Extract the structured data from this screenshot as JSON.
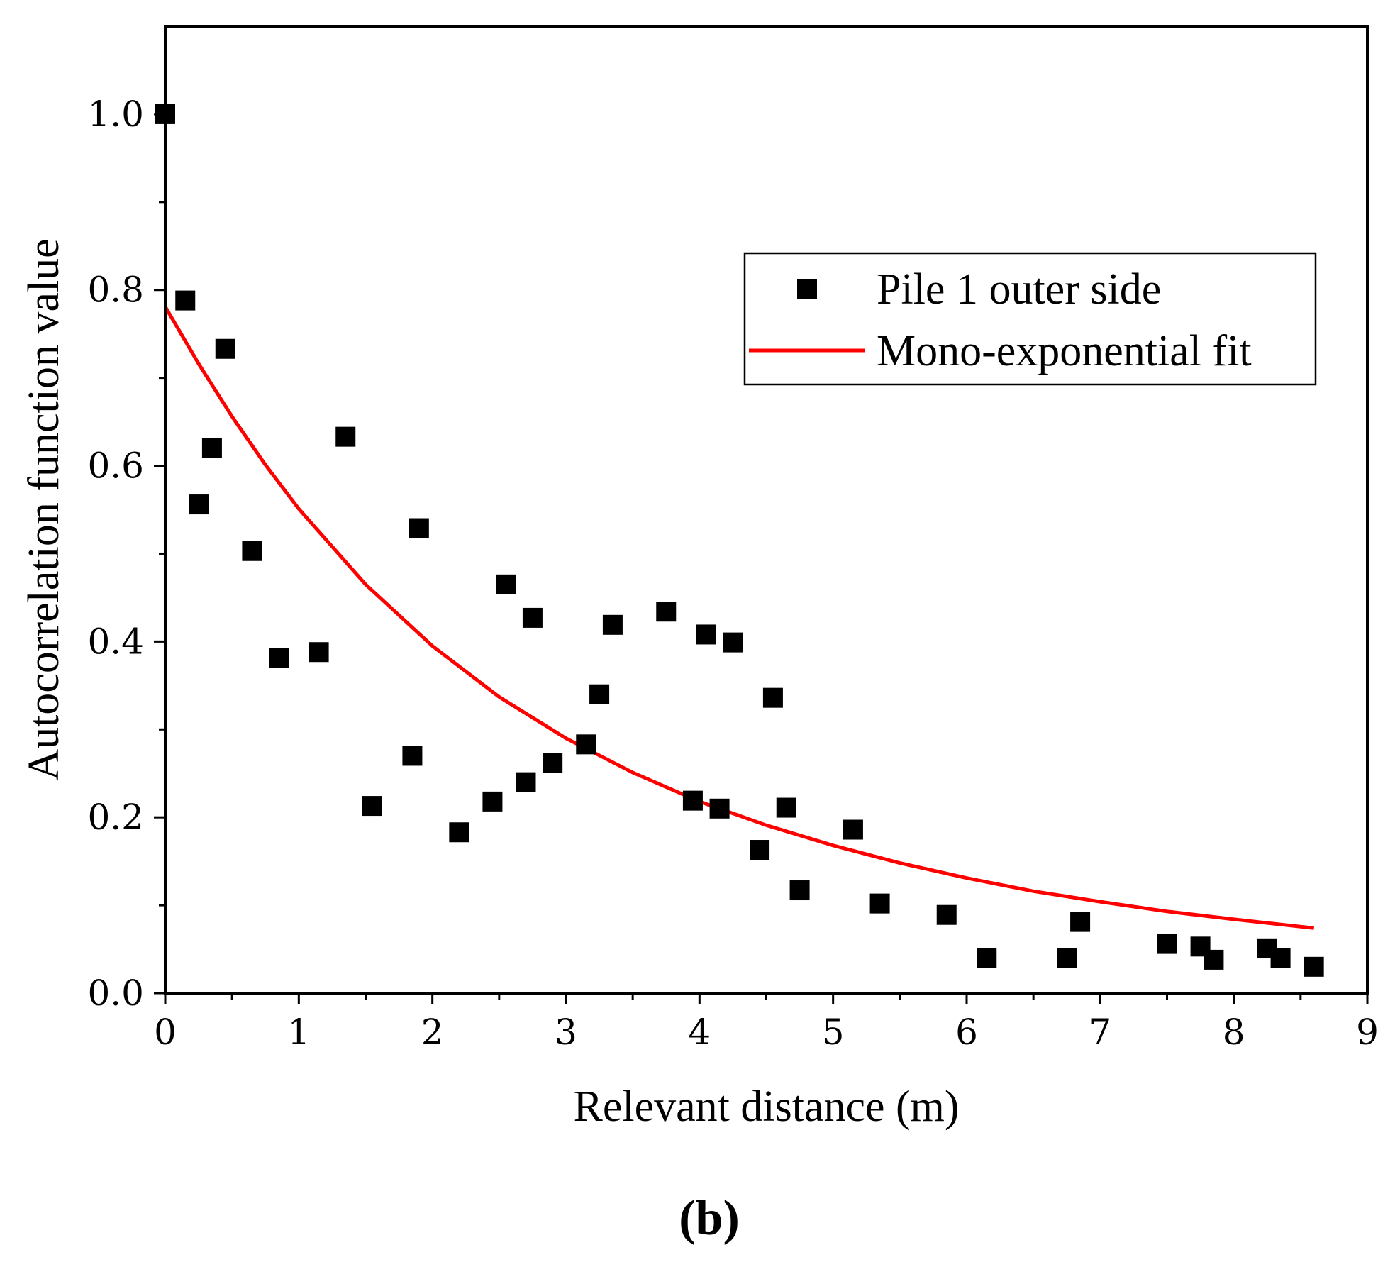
{
  "chart_data": {
    "type": "scatter",
    "title": "",
    "xlabel": "Relevant distance (m)",
    "ylabel": "Autocorrelation function value",
    "xlim": [
      0,
      9
    ],
    "ylim": [
      0,
      1.1
    ],
    "x_ticks": [
      0,
      1,
      2,
      3,
      4,
      5,
      6,
      7,
      8,
      9
    ],
    "y_ticks": [
      0.0,
      0.2,
      0.4,
      0.6,
      0.8,
      1.0
    ],
    "x_tick_labels": [
      "0",
      "1",
      "2",
      "3",
      "4",
      "5",
      "6",
      "7",
      "8",
      "9"
    ],
    "y_tick_labels": [
      "0.0",
      "0.2",
      "0.4",
      "0.6",
      "0.8",
      "1.0"
    ],
    "legend_position": "top-right",
    "panel_label": "(b)",
    "series": [
      {
        "name": "Pile 1 outer side",
        "kind": "scatter",
        "marker": "square",
        "color": "#000000",
        "points": [
          [
            0.0,
            1.0
          ],
          [
            0.15,
            0.788
          ],
          [
            0.25,
            0.556
          ],
          [
            0.35,
            0.62
          ],
          [
            0.45,
            0.733
          ],
          [
            0.65,
            0.503
          ],
          [
            0.85,
            0.381
          ],
          [
            1.15,
            0.388
          ],
          [
            1.35,
            0.633
          ],
          [
            1.55,
            0.213
          ],
          [
            1.85,
            0.27
          ],
          [
            1.9,
            0.529
          ],
          [
            2.2,
            0.183
          ],
          [
            2.45,
            0.218
          ],
          [
            2.55,
            0.465
          ],
          [
            2.7,
            0.24
          ],
          [
            2.75,
            0.427
          ],
          [
            2.9,
            0.262
          ],
          [
            3.15,
            0.283
          ],
          [
            3.25,
            0.34
          ],
          [
            3.35,
            0.419
          ],
          [
            3.75,
            0.434
          ],
          [
            3.95,
            0.219
          ],
          [
            4.05,
            0.408
          ],
          [
            4.15,
            0.21
          ],
          [
            4.25,
            0.399
          ],
          [
            4.45,
            0.163
          ],
          [
            4.55,
            0.336
          ],
          [
            4.65,
            0.211
          ],
          [
            4.75,
            0.117
          ],
          [
            5.15,
            0.186
          ],
          [
            5.35,
            0.102
          ],
          [
            5.85,
            0.089
          ],
          [
            6.15,
            0.04
          ],
          [
            6.75,
            0.04
          ],
          [
            6.85,
            0.081
          ],
          [
            7.5,
            0.056
          ],
          [
            7.75,
            0.053
          ],
          [
            7.85,
            0.038
          ],
          [
            8.25,
            0.051
          ],
          [
            8.35,
            0.04
          ],
          [
            8.6,
            0.03
          ]
        ]
      },
      {
        "name": "Mono-exponential fit",
        "kind": "line",
        "color": "#ff0000",
        "x": [
          0.0,
          0.25,
          0.5,
          0.75,
          1.0,
          1.5,
          2.0,
          2.5,
          3.0,
          3.5,
          4.0,
          4.5,
          5.0,
          5.5,
          6.0,
          6.5,
          7.0,
          7.5,
          8.0,
          8.6
        ],
        "y": [
          0.781,
          0.716,
          0.656,
          0.601,
          0.551,
          0.465,
          0.395,
          0.337,
          0.29,
          0.251,
          0.218,
          0.191,
          0.168,
          0.148,
          0.131,
          0.116,
          0.104,
          0.093,
          0.084,
          0.074
        ]
      }
    ]
  }
}
